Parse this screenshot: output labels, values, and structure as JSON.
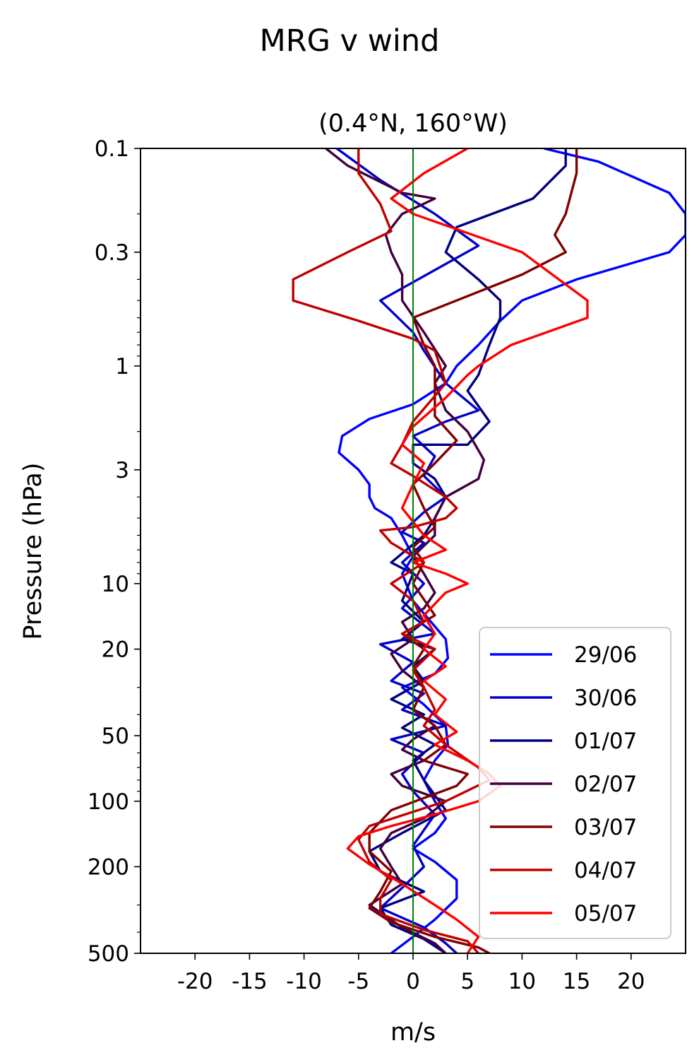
{
  "chart_data": {
    "type": "line",
    "title": "MRG v wind",
    "subtitle": "(0.4°N, 160°W)",
    "xlabel": "m/s",
    "ylabel": "Pressure (hPa)",
    "xlim": [
      -25,
      25
    ],
    "ylim": [
      500,
      0.1
    ],
    "yscale": "log",
    "xticks": [
      -20,
      -15,
      -10,
      -5,
      0,
      5,
      10,
      15,
      20
    ],
    "xtick_labels": [
      "-20",
      "-15",
      "-10",
      "-5",
      "0",
      "5",
      "10",
      "15",
      "20"
    ],
    "yticks": [
      0.1,
      0.3,
      1,
      3,
      10,
      20,
      50,
      100,
      200,
      500
    ],
    "ytick_labels": [
      "0.1",
      "0.3",
      "1",
      "3",
      "10",
      "20",
      "50",
      "100",
      "200",
      "500"
    ],
    "zero_line": {
      "x": 0,
      "color": "#008000"
    },
    "legend_position": "lower-right",
    "grid": false,
    "series": [
      {
        "name": "29/06",
        "color": "#0000ff",
        "points": [
          [
            12,
            0.1
          ],
          [
            17,
            0.115
          ],
          [
            23.5,
            0.16
          ],
          [
            25,
            0.2
          ],
          [
            25,
            0.25
          ],
          [
            23.5,
            0.3
          ],
          [
            15,
            0.4
          ],
          [
            10,
            0.5
          ],
          [
            8,
            0.62
          ],
          [
            6,
            0.8
          ],
          [
            4,
            1.0
          ],
          [
            3,
            1.2
          ],
          [
            0,
            1.5
          ],
          [
            -4,
            1.75
          ],
          [
            -6.5,
            2.1
          ],
          [
            -6.8,
            2.5
          ],
          [
            -5,
            3.0
          ],
          [
            -4,
            3.5
          ],
          [
            -4,
            4.0
          ],
          [
            -3.5,
            4.5
          ],
          [
            -2,
            5.0
          ],
          [
            -1,
            6.0
          ],
          [
            0,
            7.5
          ],
          [
            -1,
            9.0
          ],
          [
            0,
            12
          ],
          [
            3,
            18
          ],
          [
            3.2,
            22
          ],
          [
            2,
            26
          ],
          [
            -1,
            30
          ],
          [
            1,
            36
          ],
          [
            3,
            45
          ],
          [
            3.2,
            55
          ],
          [
            2,
            65
          ],
          [
            1,
            80
          ],
          [
            2,
            100
          ],
          [
            3,
            120
          ],
          [
            2,
            140
          ],
          [
            0,
            165
          ],
          [
            2,
            190
          ],
          [
            4,
            230
          ],
          [
            4,
            280
          ],
          [
            2,
            350
          ],
          [
            0,
            420
          ],
          [
            -2,
            500
          ]
        ]
      },
      {
        "name": "30/06",
        "color": "#0000cc",
        "points": [
          [
            -7,
            0.1
          ],
          [
            -3,
            0.14
          ],
          [
            2,
            0.2
          ],
          [
            6,
            0.28
          ],
          [
            -3,
            0.5
          ],
          [
            0,
            0.7
          ],
          [
            1,
            0.85
          ],
          [
            3,
            1.2
          ],
          [
            6,
            1.6
          ],
          [
            3,
            1.8
          ],
          [
            0,
            2.1
          ],
          [
            2,
            2.6
          ],
          [
            1,
            3.2
          ],
          [
            3,
            4.0
          ],
          [
            1,
            4.7
          ],
          [
            -1,
            5.8
          ],
          [
            1,
            6.5
          ],
          [
            -1,
            8.0
          ],
          [
            1,
            10
          ],
          [
            -1,
            13
          ],
          [
            2,
            17
          ],
          [
            -3,
            19
          ],
          [
            0,
            23
          ],
          [
            -2,
            28
          ],
          [
            1,
            32
          ],
          [
            -1,
            38
          ],
          [
            3,
            45
          ],
          [
            -2,
            52
          ],
          [
            1,
            60
          ],
          [
            -1,
            75
          ],
          [
            0,
            90
          ],
          [
            2,
            115
          ],
          [
            0,
            160
          ],
          [
            1,
            200
          ],
          [
            -1,
            250
          ],
          [
            -3,
            310
          ],
          [
            1,
            380
          ],
          [
            3,
            450
          ],
          [
            4,
            500
          ]
        ]
      },
      {
        "name": "01/07",
        "color": "#000080",
        "points": [
          [
            14,
            0.1
          ],
          [
            14,
            0.12
          ],
          [
            11,
            0.17
          ],
          [
            4,
            0.23
          ],
          [
            3,
            0.3
          ],
          [
            6,
            0.4
          ],
          [
            8,
            0.5
          ],
          [
            8,
            0.6
          ],
          [
            7,
            0.8
          ],
          [
            6,
            1.1
          ],
          [
            5,
            1.3
          ],
          [
            7,
            1.8
          ],
          [
            5,
            2.3
          ],
          [
            0,
            2.3
          ],
          [
            0,
            2.8
          ],
          [
            2,
            3.3
          ],
          [
            3,
            4.0
          ],
          [
            2,
            5.0
          ],
          [
            1,
            6.0
          ],
          [
            -2,
            8.0
          ],
          [
            0,
            9.0
          ],
          [
            -1,
            12
          ],
          [
            1,
            15
          ],
          [
            -1,
            18
          ],
          [
            2,
            20
          ],
          [
            0,
            24
          ],
          [
            1,
            28
          ],
          [
            -2,
            34
          ],
          [
            1,
            40
          ],
          [
            -1,
            46
          ],
          [
            2,
            55
          ],
          [
            0,
            65
          ],
          [
            1,
            80
          ],
          [
            3,
            110
          ],
          [
            -1,
            140
          ],
          [
            -4,
            170
          ],
          [
            -3,
            210
          ],
          [
            1,
            260
          ],
          [
            -3,
            310
          ],
          [
            -2,
            370
          ],
          [
            1,
            430
          ],
          [
            3,
            500
          ]
        ]
      },
      {
        "name": "02/07",
        "color": "#400040",
        "points": [
          [
            -8,
            0.1
          ],
          [
            -6,
            0.12
          ],
          [
            -1,
            0.16
          ],
          [
            2,
            0.17
          ],
          [
            -1,
            0.2
          ],
          [
            -2.5,
            0.25
          ],
          [
            -2,
            0.3
          ],
          [
            -1,
            0.38
          ],
          [
            -1,
            0.5
          ],
          [
            1,
            0.7
          ],
          [
            3,
            1.0
          ],
          [
            2,
            1.2
          ],
          [
            3,
            1.6
          ],
          [
            5,
            2.0
          ],
          [
            6.5,
            2.7
          ],
          [
            6,
            3.3
          ],
          [
            3,
            4.0
          ],
          [
            2,
            5.0
          ],
          [
            2,
            6.0
          ],
          [
            0,
            7.5
          ],
          [
            1,
            9.0
          ],
          [
            2,
            11
          ],
          [
            1,
            13
          ],
          [
            -1,
            15
          ],
          [
            0,
            18
          ],
          [
            -2,
            21
          ],
          [
            -1,
            25
          ],
          [
            1,
            30
          ],
          [
            0,
            38
          ],
          [
            2,
            45
          ],
          [
            0,
            52
          ],
          [
            -1,
            58
          ],
          [
            1,
            65
          ],
          [
            -2,
            75
          ],
          [
            -1,
            85
          ],
          [
            3,
            100
          ],
          [
            1,
            120
          ],
          [
            -2,
            140
          ],
          [
            -3,
            165
          ],
          [
            -2,
            200
          ],
          [
            -1,
            240
          ],
          [
            -4,
            300
          ],
          [
            -1,
            380
          ],
          [
            2,
            450
          ],
          [
            3,
            500
          ]
        ]
      },
      {
        "name": "03/07",
        "color": "#800000",
        "points": [
          [
            15,
            0.1
          ],
          [
            15,
            0.13
          ],
          [
            14,
            0.2
          ],
          [
            13,
            0.25
          ],
          [
            14,
            0.3
          ],
          [
            10,
            0.38
          ],
          [
            0,
            0.6
          ],
          [
            1,
            0.8
          ],
          [
            2,
            1.0
          ],
          [
            2,
            1.3
          ],
          [
            2,
            1.7
          ],
          [
            4,
            2.2
          ],
          [
            2,
            2.8
          ],
          [
            0,
            3.5
          ],
          [
            1,
            4.5
          ],
          [
            2,
            5.5
          ],
          [
            0,
            6.8
          ],
          [
            1,
            8.0
          ],
          [
            0,
            10
          ],
          [
            2,
            14
          ],
          [
            -1,
            17
          ],
          [
            1,
            20
          ],
          [
            0,
            24
          ],
          [
            1,
            30
          ],
          [
            0,
            38
          ],
          [
            2,
            45
          ],
          [
            3,
            55
          ],
          [
            1,
            65
          ],
          [
            5,
            75
          ],
          [
            4,
            85
          ],
          [
            -2,
            110
          ],
          [
            -4,
            140
          ],
          [
            -4,
            170
          ],
          [
            -2,
            210
          ],
          [
            -3,
            260
          ],
          [
            -4,
            310
          ],
          [
            -2,
            360
          ],
          [
            2,
            420
          ],
          [
            6,
            470
          ],
          [
            7,
            500
          ]
        ]
      },
      {
        "name": "04/07",
        "color": "#c00000",
        "points": [
          [
            -5,
            0.1
          ],
          [
            -5,
            0.13
          ],
          [
            -3,
            0.18
          ],
          [
            -2,
            0.24
          ],
          [
            -6,
            0.3
          ],
          [
            -11,
            0.4
          ],
          [
            -11,
            0.5
          ],
          [
            -5,
            0.62
          ],
          [
            0,
            0.75
          ],
          [
            2,
            0.85
          ],
          [
            3,
            1.2
          ],
          [
            0,
            1.8
          ],
          [
            -1,
            2.3
          ],
          [
            -2,
            2.8
          ],
          [
            0,
            3.2
          ],
          [
            3,
            4.0
          ],
          [
            4,
            4.5
          ],
          [
            3,
            5.0
          ],
          [
            0,
            5.5
          ],
          [
            -3,
            5.7
          ],
          [
            -2,
            6.5
          ],
          [
            1,
            8.0
          ],
          [
            -2,
            10
          ],
          [
            0,
            12
          ],
          [
            1,
            15
          ],
          [
            -1,
            17
          ],
          [
            2,
            20
          ],
          [
            0,
            25
          ],
          [
            1,
            30
          ],
          [
            2,
            38
          ],
          [
            1,
            45
          ],
          [
            3,
            55
          ],
          [
            6,
            70
          ],
          [
            7,
            80
          ],
          [
            3,
            100
          ],
          [
            -4,
            130
          ],
          [
            -5,
            150
          ],
          [
            -4,
            190
          ],
          [
            -2,
            230
          ],
          [
            -3,
            280
          ],
          [
            -3,
            330
          ],
          [
            1,
            390
          ],
          [
            5,
            440
          ],
          [
            6,
            500
          ]
        ]
      },
      {
        "name": "05/07",
        "color": "#ff0000",
        "points": [
          [
            5,
            0.1
          ],
          [
            1,
            0.13
          ],
          [
            -2,
            0.17
          ],
          [
            0,
            0.2
          ],
          [
            10,
            0.3
          ],
          [
            16,
            0.5
          ],
          [
            16,
            0.6
          ],
          [
            9,
            0.8
          ],
          [
            6,
            1.0
          ],
          [
            5,
            1.1
          ],
          [
            3,
            1.4
          ],
          [
            0,
            1.9
          ],
          [
            -1,
            2.3
          ],
          [
            1,
            2.8
          ],
          [
            0,
            3.5
          ],
          [
            -1,
            4.5
          ],
          [
            1,
            6.0
          ],
          [
            3,
            7.0
          ],
          [
            0,
            8.0
          ],
          [
            3,
            9.0
          ],
          [
            5,
            10
          ],
          [
            3,
            11
          ],
          [
            1,
            14
          ],
          [
            2,
            17
          ],
          [
            1,
            20
          ],
          [
            3,
            24
          ],
          [
            1,
            28
          ],
          [
            3,
            34
          ],
          [
            2,
            40
          ],
          [
            4,
            48
          ],
          [
            2,
            55
          ],
          [
            5,
            65
          ],
          [
            7,
            75
          ],
          [
            8,
            85
          ],
          [
            6,
            100
          ],
          [
            2,
            115
          ],
          [
            -2,
            130
          ],
          [
            -5,
            145
          ],
          [
            -6,
            165
          ],
          [
            -4,
            195
          ],
          [
            -1,
            240
          ],
          [
            2,
            300
          ],
          [
            4,
            350
          ],
          [
            6,
            420
          ],
          [
            5,
            500
          ]
        ]
      }
    ]
  }
}
